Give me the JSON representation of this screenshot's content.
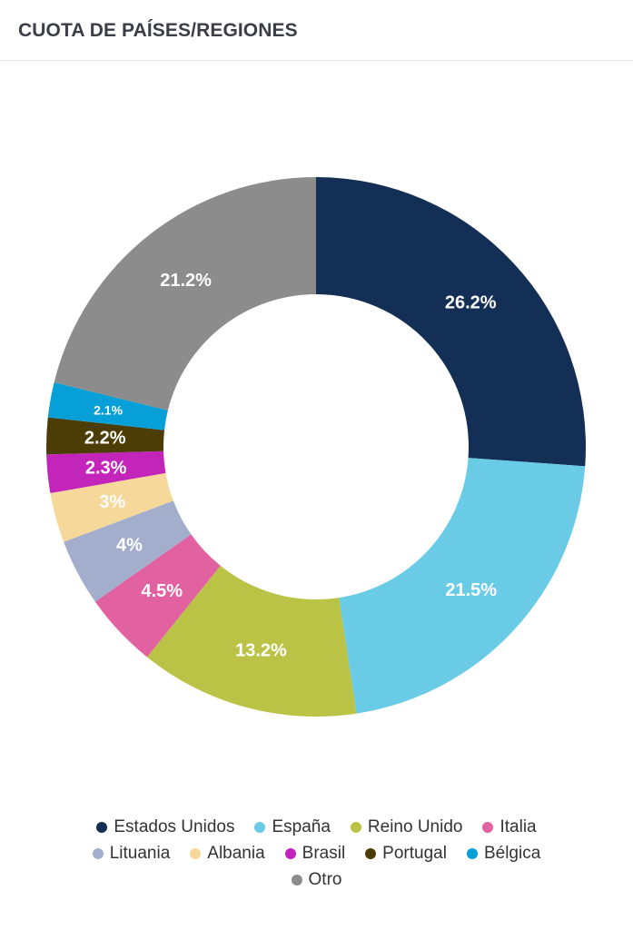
{
  "header": {
    "title": "CUOTA DE PAÍSES/REGIONES"
  },
  "chart_data": {
    "type": "pie",
    "style": "donut",
    "legend_position": "bottom",
    "categories": [
      "Estados Unidos",
      "España",
      "Reino Unido",
      "Italia",
      "Lituania",
      "Albania",
      "Brasil",
      "Portugal",
      "Bélgica",
      "Otro"
    ],
    "values": [
      26.2,
      21.5,
      13.2,
      4.5,
      4,
      3,
      2.3,
      2.2,
      2.1,
      21.2
    ],
    "labels": [
      "26.2%",
      "21.5%",
      "13.2%",
      "4.5%",
      "4%",
      "3%",
      "2.3%",
      "2.2%",
      "2.1%",
      "21.2%"
    ],
    "colors": [
      "#132f55",
      "#69cbe6",
      "#bac345",
      "#e262a1",
      "#a3aecd",
      "#f6d89b",
      "#c324b9",
      "#4c3d06",
      "#079fd8",
      "#8c8c8c"
    ]
  }
}
